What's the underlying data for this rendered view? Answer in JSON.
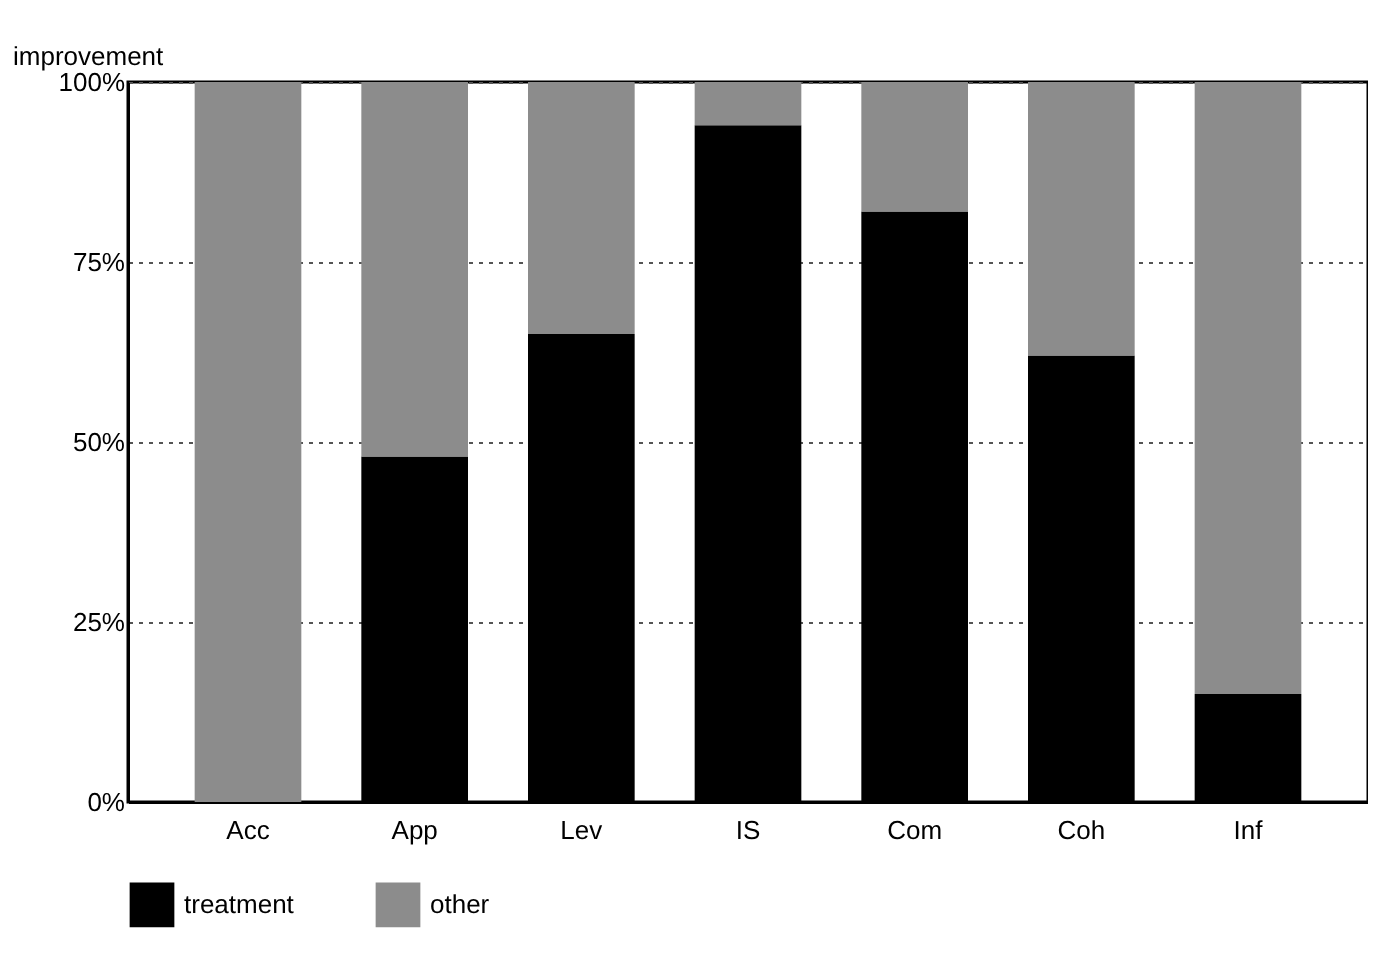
{
  "chart_data": {
    "type": "bar",
    "stacked": true,
    "ylabel": "improvement",
    "categories": [
      "Acc",
      "App",
      "Lev",
      "IS",
      "Com",
      "Coh",
      "Inf"
    ],
    "series": [
      {
        "name": "treatment",
        "color": "#000000",
        "values": [
          0,
          48,
          65,
          94,
          82,
          62,
          15
        ]
      },
      {
        "name": "other",
        "color": "#8c8c8c",
        "values": [
          100,
          52,
          35,
          6,
          18,
          38,
          85
        ]
      }
    ],
    "ylim": [
      0,
      100
    ],
    "yticks": [
      {
        "value": 0,
        "label": "0%"
      },
      {
        "value": 25,
        "label": "25%"
      },
      {
        "value": 50,
        "label": "50%"
      },
      {
        "value": 75,
        "label": "75%"
      },
      {
        "value": 100,
        "label": "100%"
      }
    ],
    "grid": "y",
    "legend": "bottom"
  }
}
